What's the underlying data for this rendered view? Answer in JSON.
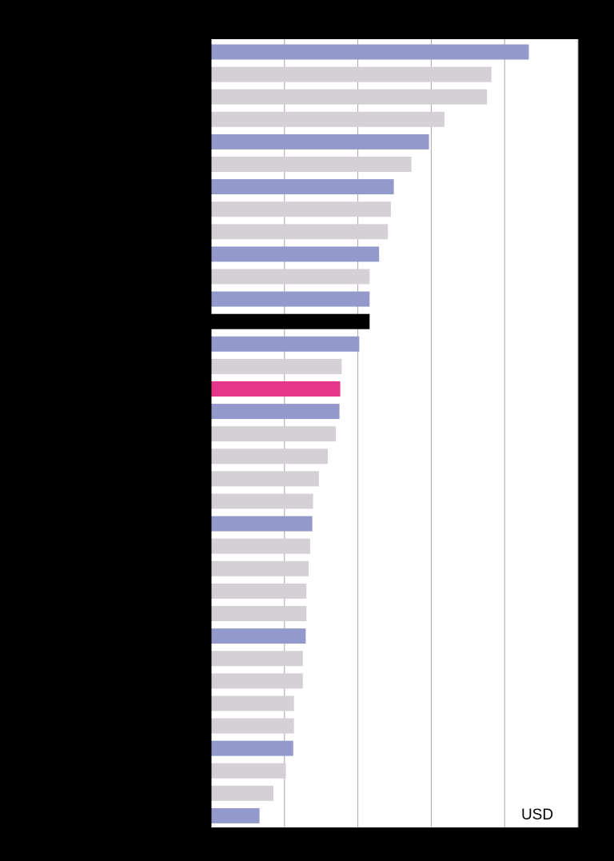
{
  "chart_data": {
    "type": "bar",
    "orientation": "horizontal",
    "unit_label": "USD",
    "grid": true,
    "xlim": [
      0,
      50
    ],
    "x_gridlines": [
      0,
      10,
      20,
      30,
      40,
      50
    ],
    "categories": [
      "",
      "",
      "",
      "",
      "",
      "",
      "",
      "",
      "",
      "",
      "",
      "",
      "",
      "",
      "",
      "",
      "",
      "",
      "",
      "",
      "",
      "",
      "",
      "",
      "",
      "",
      "",
      "",
      "",
      "",
      "",
      "",
      "",
      "",
      ""
    ],
    "values": [
      43.3,
      38.2,
      37.6,
      31.8,
      29.7,
      27.3,
      24.9,
      24.5,
      24.1,
      22.9,
      21.6,
      21.6,
      21.6,
      20.2,
      17.8,
      17.6,
      17.5,
      17.0,
      15.9,
      14.7,
      13.9,
      13.8,
      13.5,
      13.3,
      13.0,
      13.0,
      12.9,
      12.5,
      12.5,
      11.3,
      11.3,
      11.2,
      10.2,
      8.5,
      6.6
    ],
    "highlight": [
      "group",
      "other",
      "other",
      "other",
      "group",
      "other",
      "group",
      "other",
      "other",
      "group",
      "other",
      "group",
      "focus",
      "group",
      "other",
      "accent",
      "group",
      "other",
      "other",
      "other",
      "other",
      "group",
      "other",
      "other",
      "other",
      "other",
      "group",
      "other",
      "other",
      "other",
      "other",
      "group",
      "other",
      "other",
      "group"
    ],
    "colors": {
      "group": "#9499cb",
      "other": "#d5d0d6",
      "focus": "#000000",
      "accent": "#e6368a",
      "plot_background": "#ffffff",
      "gridline": "#a6a6a6",
      "axis": "#000000"
    }
  }
}
